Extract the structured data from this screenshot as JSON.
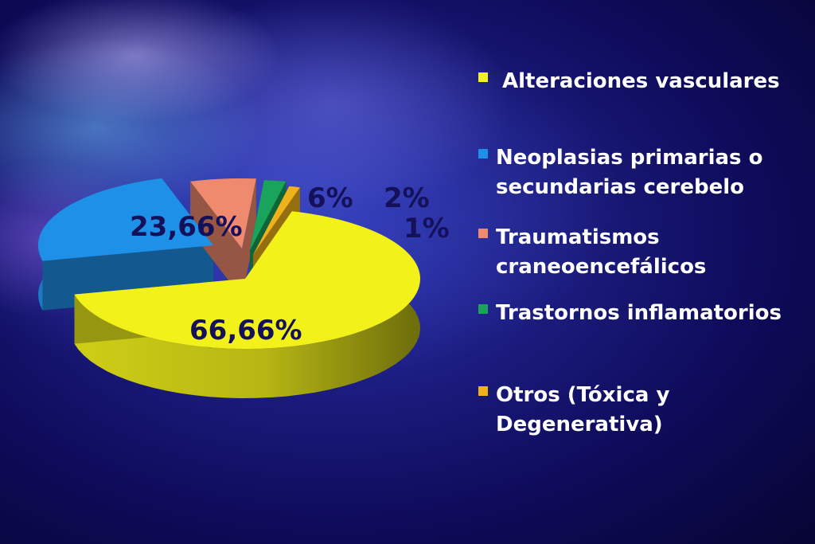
{
  "chart_data": {
    "type": "pie",
    "categories": [
      "Alteraciones vasculares",
      "Neoplasias primarias o secundarias cerebelo",
      "Traumatismos craneoencefálicos",
      "Trastornos inflamatorios",
      "Otros (Tóxica y Degenerativa)"
    ],
    "values": [
      66.66,
      23.66,
      6,
      2,
      1
    ],
    "data_labels": [
      "66,66%",
      "23,66%",
      "6%",
      "2%",
      "1%"
    ],
    "colors": [
      "#f2f21a",
      "#1e90e8",
      "#f08a6e",
      "#1aa35a",
      "#f0b21a"
    ],
    "legend": {
      "placement": "right",
      "entries": [
        "Alteraciones vasculares",
        "Neoplasias primarias o\nsecundarias cerebelo",
        "Traumatismos\ncraneoencefálicos",
        "Trastornos inflamatorios",
        "Otros (Tóxica y\nDegenerativa)"
      ]
    }
  }
}
